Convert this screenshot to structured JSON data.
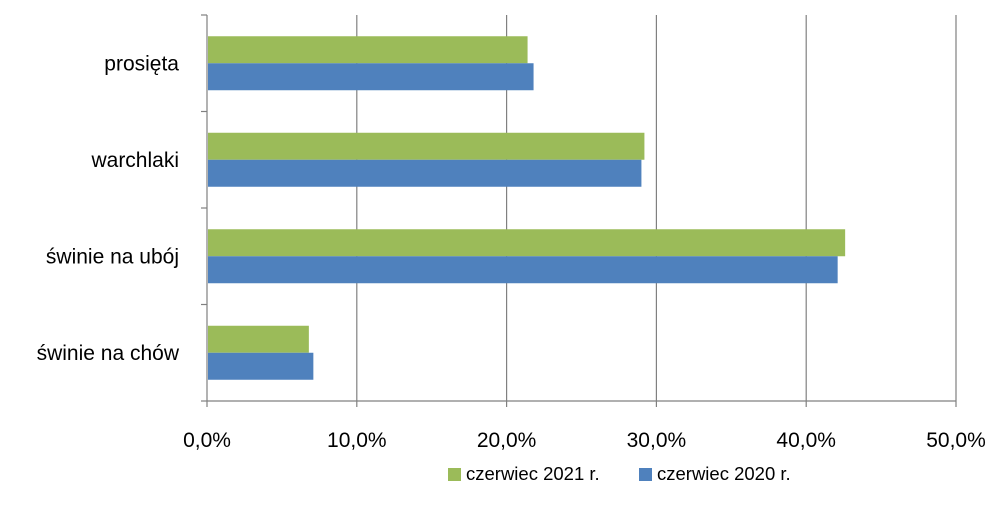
{
  "chart_data": {
    "type": "bar",
    "orientation": "horizontal",
    "categories": [
      "prosięta",
      "warchlaki",
      "świnie na ubój",
      "świnie na chów"
    ],
    "series": [
      {
        "name": "czerwiec 2021 r.",
        "color": "#9BBB59",
        "values": [
          21.4,
          29.2,
          42.6,
          6.8
        ]
      },
      {
        "name": "czerwiec 2020 r.",
        "color": "#4F81BD",
        "values": [
          21.8,
          29.0,
          42.1,
          7.1
        ]
      }
    ],
    "xlim": [
      0,
      50
    ],
    "xticks": [
      0,
      10,
      20,
      30,
      40,
      50
    ],
    "xtick_labels": [
      "0,0%",
      "10,0%",
      "20,0%",
      "30,0%",
      "40,0%",
      "50,0%"
    ],
    "grid": "vertical",
    "grid_color": "#808080",
    "legend_position": "bottom-right",
    "title": "",
    "xlabel": "",
    "ylabel": ""
  }
}
